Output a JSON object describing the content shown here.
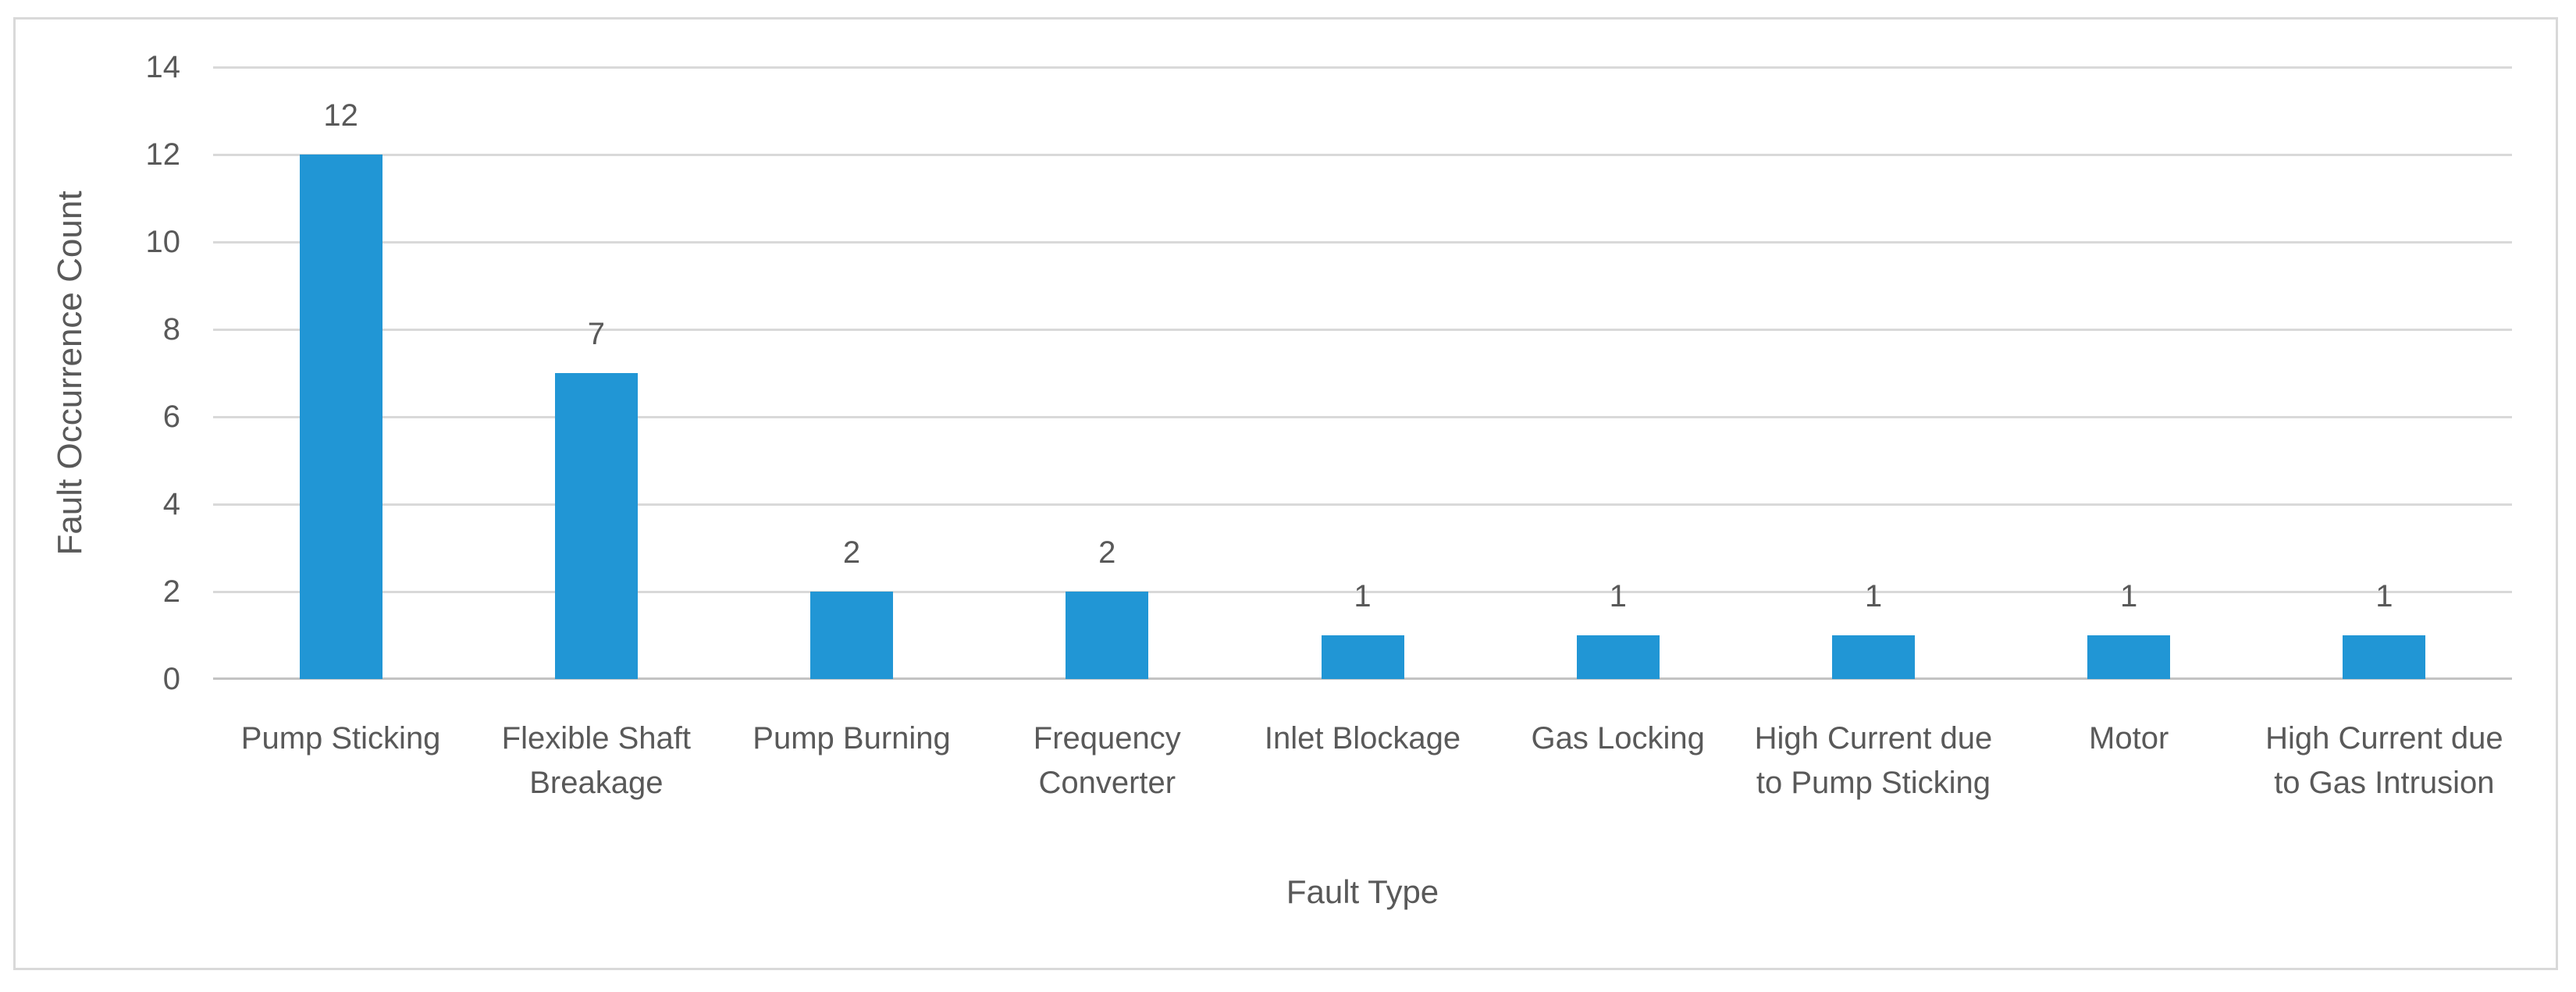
{
  "chart_data": {
    "type": "bar",
    "title": "",
    "categories": [
      "Pump Sticking",
      "Flexible Shaft Breakage",
      "Pump Burning",
      "Frequency Converter",
      "Inlet Blockage",
      "Gas Locking",
      "High Current due to Pump Sticking",
      "Motor",
      "High Current due to Gas Intrusion"
    ],
    "values": [
      12,
      7,
      2,
      2,
      1,
      1,
      1,
      1,
      1
    ],
    "data_labels": [
      "12",
      "7",
      "2",
      "2",
      "1",
      "1",
      "1",
      "1",
      "1"
    ],
    "xlabel": "Fault Type",
    "ylabel": "Fault Occurrence Count",
    "ylim": [
      0,
      14
    ],
    "yticks": [
      0,
      2,
      4,
      6,
      8,
      10,
      12,
      14
    ],
    "grid": true,
    "legend": "none",
    "bar_color": "#2196d5",
    "gridline_color": "#d9d9d9",
    "axis_line_color": "#c3c3c3",
    "text_color": "#595959",
    "frame_border_color": "#d9d9d9"
  }
}
